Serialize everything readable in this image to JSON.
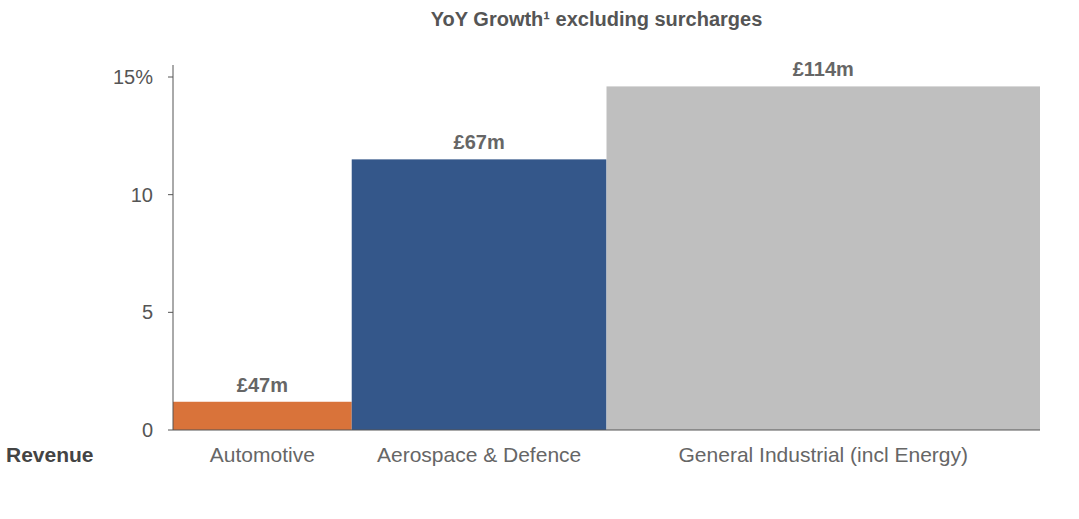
{
  "chart_data": {
    "type": "bar",
    "title": "YoY Growth¹ excluding surcharges",
    "xlabel": "Revenue",
    "categories": [
      "Automotive",
      "Aerospace & Defence",
      "General Industrial (incl Energy)"
    ],
    "values": [
      1.2,
      11.5,
      14.6
    ],
    "revenue": [
      47,
      67,
      114
    ],
    "revenue_labels": [
      "£47m",
      "£67m",
      "£114m"
    ],
    "colors": [
      "#d9733a",
      "#34578a",
      "#bfbfbf"
    ],
    "ylim": [
      0,
      15
    ],
    "yticks": [
      0,
      5,
      10,
      {
        "value": 15,
        "label": "15%"
      }
    ],
    "grid": false
  }
}
